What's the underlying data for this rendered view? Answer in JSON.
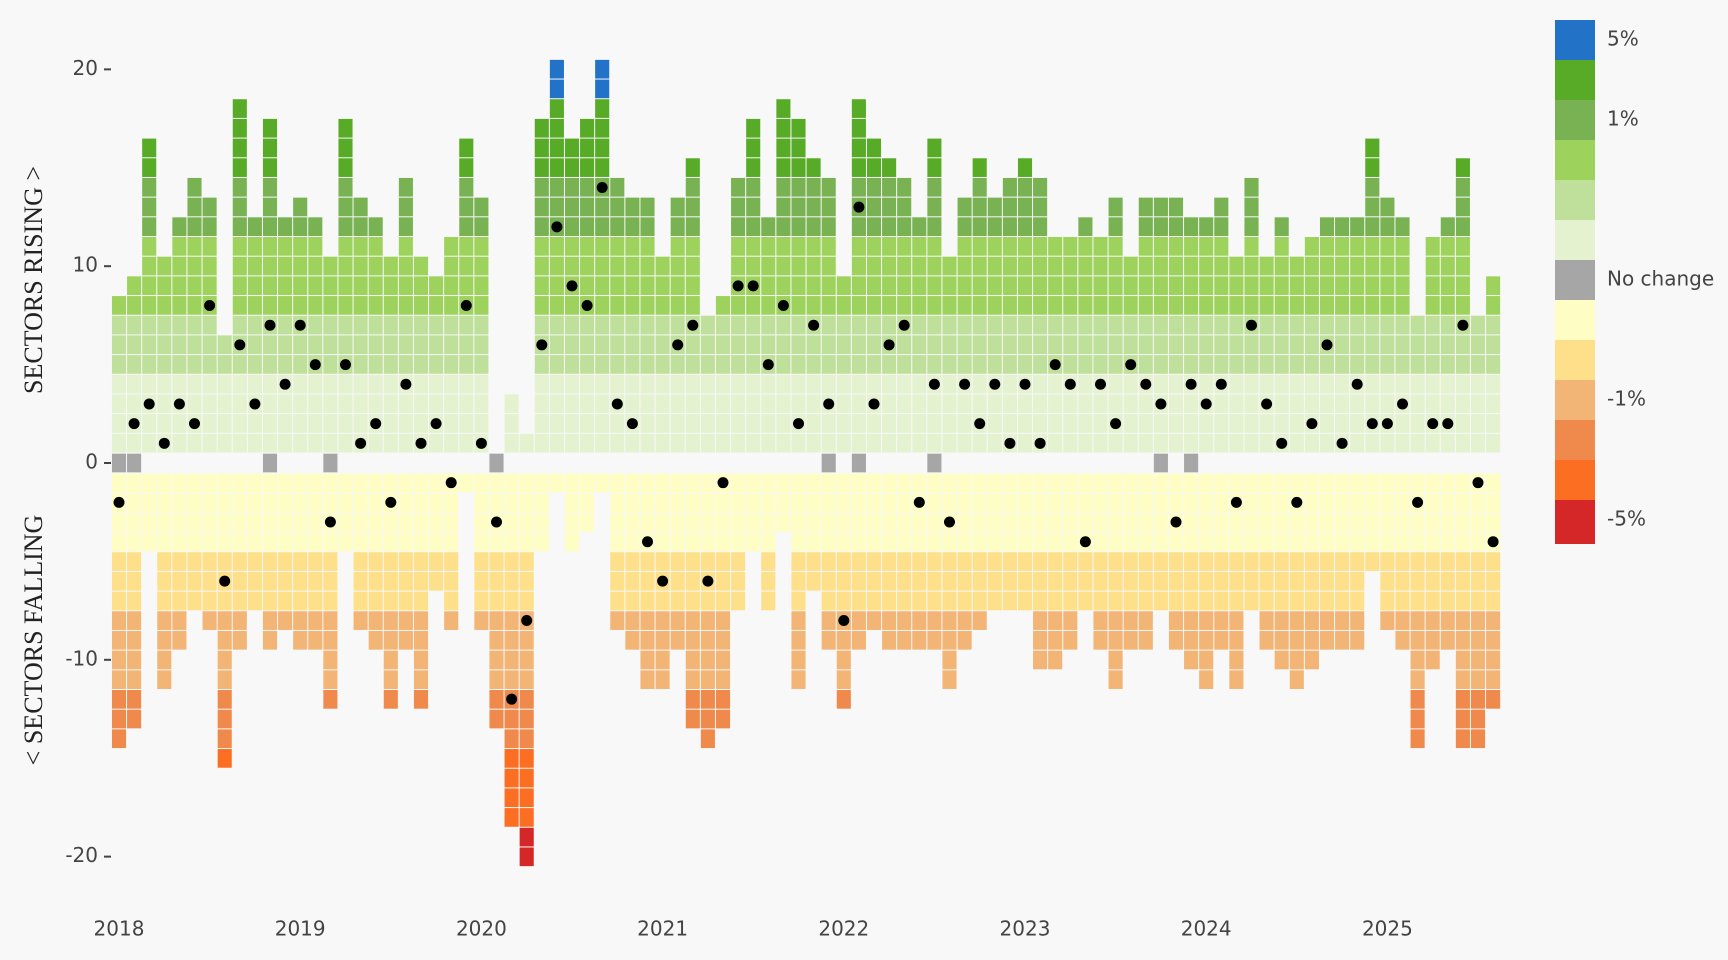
{
  "chart_data": {
    "type": "sector-grid",
    "ylabel_top": "SECTORS RISING >",
    "ylabel_bottom": "< SECTORS FALLING",
    "ylim": [
      -22,
      22
    ],
    "yticks": [
      -20,
      -10,
      0,
      10,
      20
    ],
    "categories": [
      "2018",
      null,
      null,
      null,
      null,
      null,
      null,
      null,
      null,
      null,
      null,
      null,
      "2019",
      null,
      null,
      null,
      null,
      null,
      null,
      null,
      null,
      null,
      null,
      null,
      "2020",
      null,
      null,
      null,
      null,
      null,
      null,
      null,
      null,
      null,
      null,
      null,
      "2021",
      null,
      null,
      null,
      null,
      null,
      null,
      null,
      null,
      null,
      null,
      null,
      "2022",
      null,
      null,
      null,
      null,
      null,
      null,
      null,
      null,
      null,
      null,
      null,
      "2023",
      null,
      null,
      null,
      null,
      null,
      null,
      null,
      null,
      null,
      null,
      null,
      "2024",
      null,
      null,
      null,
      null,
      null,
      null,
      null,
      null,
      null,
      null,
      null,
      "2025",
      null,
      null,
      null,
      null,
      null,
      null,
      null
    ],
    "rising": [
      8,
      9,
      16,
      10,
      12,
      14,
      13,
      6,
      18,
      12,
      17,
      12,
      13,
      12,
      10,
      17,
      13,
      12,
      10,
      14,
      10,
      9,
      11,
      16,
      13,
      0,
      3,
      1,
      17,
      20,
      16,
      17,
      20,
      14,
      13,
      13,
      10,
      13,
      15,
      7,
      8,
      14,
      17,
      12,
      18,
      17,
      15,
      14,
      9,
      18,
      16,
      15,
      14,
      12,
      16,
      10,
      13,
      15,
      13,
      14,
      15,
      14,
      11,
      11,
      12,
      11,
      13,
      10,
      13,
      13,
      13,
      12,
      12,
      13,
      10,
      14,
      10,
      12,
      10,
      11,
      12,
      12,
      12,
      16,
      13,
      12,
      7,
      11,
      12,
      15,
      7,
      9
    ],
    "falling": [
      -14,
      -13,
      -4,
      -11,
      -9,
      -7,
      -8,
      -15,
      -9,
      -7,
      -9,
      -8,
      -9,
      -9,
      -12,
      -4,
      -8,
      -9,
      -12,
      -9,
      -12,
      -6,
      -8,
      -1,
      -8,
      -13,
      -18,
      -20,
      -4,
      -1,
      -4,
      -3,
      -1,
      -8,
      -9,
      -11,
      -11,
      -9,
      -13,
      -14,
      -13,
      -7,
      -4,
      -7,
      -3,
      -11,
      -6,
      -9,
      -12,
      -9,
      -8,
      -9,
      -9,
      -9,
      -9,
      -11,
      -9,
      -8,
      -7,
      -7,
      -7,
      -10,
      -10,
      -9,
      -7,
      -9,
      -11,
      -9,
      -9,
      -7,
      -9,
      -10,
      -11,
      -9,
      -11,
      -7,
      -9,
      -10,
      -11,
      -10,
      -9,
      -9,
      -9,
      -5,
      -8,
      -9,
      -14,
      -10,
      -9,
      -14,
      -14,
      -12
    ],
    "no_change": [
      1,
      1,
      0,
      0,
      0,
      0,
      0,
      0,
      0,
      0,
      1,
      0,
      0,
      0,
      1,
      0,
      0,
      0,
      0,
      0,
      0,
      0,
      0,
      0,
      0,
      1,
      0,
      0,
      0,
      0,
      0,
      0,
      0,
      0,
      0,
      0,
      0,
      0,
      0,
      0,
      0,
      0,
      0,
      0,
      0,
      0,
      0,
      1,
      0,
      1,
      0,
      0,
      0,
      0,
      1,
      0,
      0,
      0,
      0,
      0,
      0,
      0,
      0,
      0,
      0,
      0,
      0,
      0,
      0,
      1,
      0,
      1,
      0,
      0,
      0,
      0,
      0,
      0,
      0,
      0,
      0,
      0,
      0,
      0,
      0,
      0,
      0,
      0,
      0,
      0,
      0,
      0
    ],
    "average": [
      -2,
      2,
      3,
      1,
      3,
      2,
      8,
      -6,
      6,
      3,
      7,
      4,
      7,
      5,
      -3,
      5,
      1,
      2,
      -2,
      4,
      1,
      2,
      -1,
      8,
      1,
      -3,
      -12,
      -8,
      6,
      12,
      9,
      8,
      14,
      3,
      2,
      -4,
      -6,
      6,
      7,
      -6,
      -1,
      9,
      9,
      5,
      8,
      2,
      7,
      3,
      -8,
      13,
      3,
      6,
      7,
      -2,
      4,
      -3,
      4,
      2,
      4,
      1,
      4,
      1,
      5,
      4,
      -4,
      4,
      2,
      5,
      4,
      3,
      -3,
      4,
      3,
      4,
      -2,
      7,
      3,
      1,
      -2,
      2,
      6,
      1,
      4,
      2,
      2,
      3,
      -2,
      2,
      2,
      7,
      -1,
      -4
    ],
    "dot_color": "#000000",
    "legend": [
      {
        "color": "#2272c8",
        "label": "5%"
      },
      {
        "color": "#57ab27",
        "label": null
      },
      {
        "color": "#79b253",
        "label": "1%"
      },
      {
        "color": "#9dd35c",
        "label": null
      },
      {
        "color": "#bfe09a",
        "label": null
      },
      {
        "color": "#e4f2d0",
        "label": null
      },
      {
        "color": "#a6a6a6",
        "label": "No change"
      },
      {
        "color": "#fefec4",
        "label": null
      },
      {
        "color": "#fedf8a",
        "label": null
      },
      {
        "color": "#f2b576",
        "label": "-1%"
      },
      {
        "color": "#f08a4c",
        "label": null
      },
      {
        "color": "#fc6e22",
        "label": null
      },
      {
        "color": "#d62728",
        "label": "-5%"
      }
    ]
  }
}
